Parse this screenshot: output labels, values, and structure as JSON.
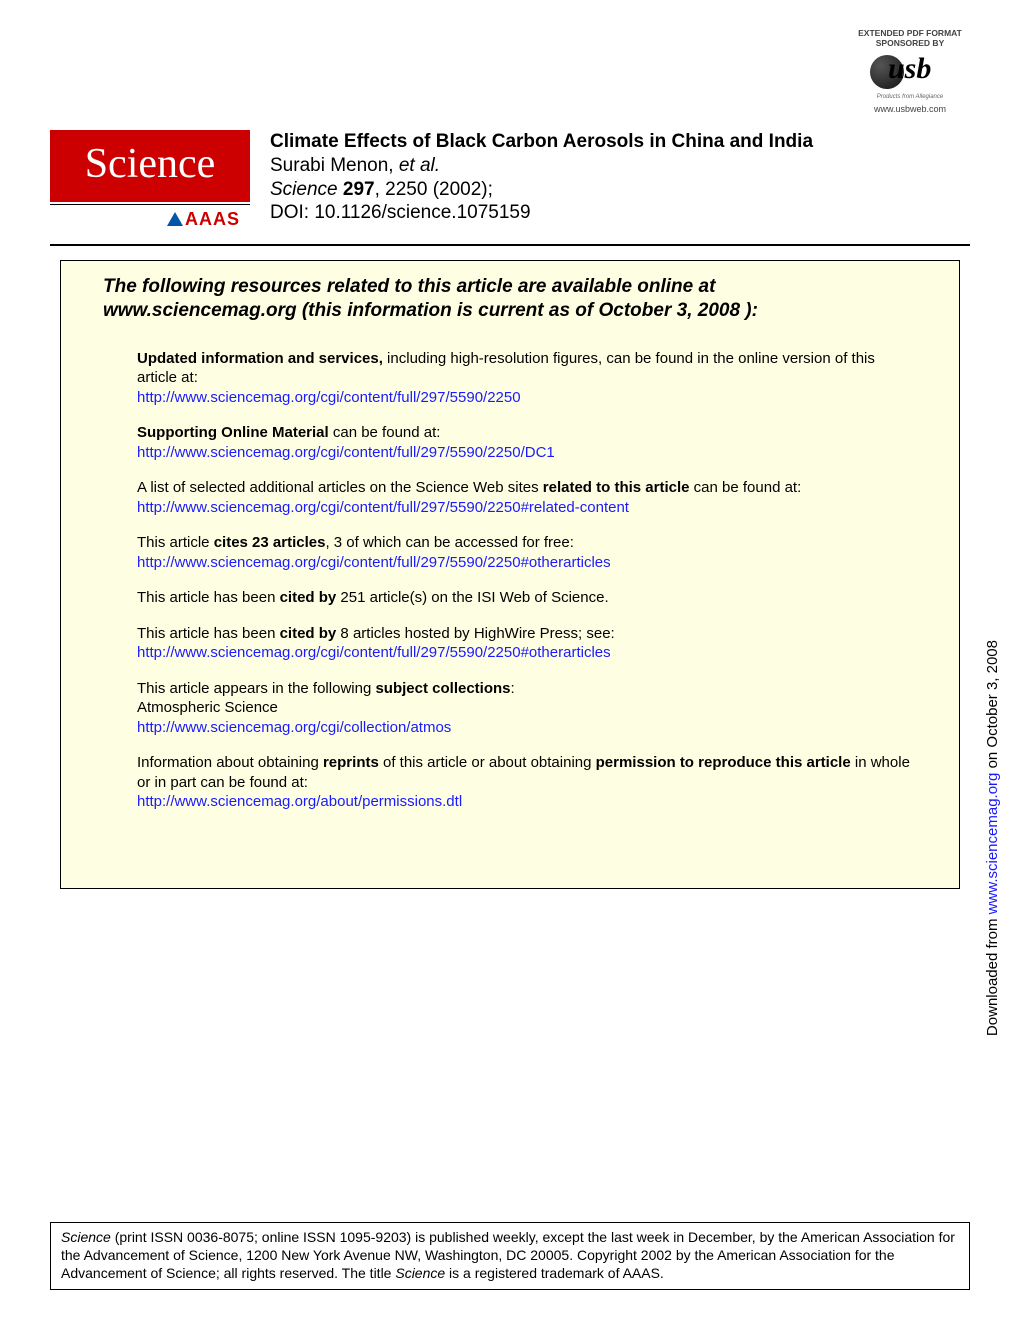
{
  "sponsor": {
    "line1": "EXTENDED PDF FORMAT",
    "line2": "SPONSORED BY",
    "brand_text": "usb",
    "tagline": "Products from Allegiance",
    "url": "www.usbweb.com",
    "text_color": "#444444",
    "orb_color": "#111111"
  },
  "header": {
    "logo_text": "Science",
    "logo_bg": "#cc0000",
    "logo_fg": "#ffffff",
    "aaas_text": "AAAS",
    "aaas_color": "#cc0000",
    "aaas_triangle_color": "#0057a8",
    "title": "Climate Effects of Black Carbon Aerosols in China and India",
    "authors_lead": "Surabi Menon, ",
    "authors_etal": "et al.",
    "journal": "Science",
    "volume": "297",
    "pages_year": ", 2250 (2002);",
    "doi": "DOI: 10.1126/science.1075159"
  },
  "resources": {
    "heading_line1": "The following resources related to this article are available online at",
    "heading_line2": "www.sciencemag.org (this information is current as of October 3, 2008 ):",
    "box_bg": "#feffe2",
    "link_color": "#1a1aff",
    "blocks": {
      "updated": {
        "strong": "Updated information and services,",
        "rest": " including high-resolution figures, can be found in the online version of this article at:",
        "url": "http://www.sciencemag.org/cgi/content/full/297/5590/2250"
      },
      "som": {
        "strong": "Supporting Online Material",
        "rest": " can be found at:",
        "url": "http://www.sciencemag.org/cgi/content/full/297/5590/2250/DC1"
      },
      "related": {
        "pre": "A list of selected additional articles on the Science Web sites ",
        "strong": "related to this article",
        "post": " can be found at:",
        "url": "http://www.sciencemag.org/cgi/content/full/297/5590/2250#related-content"
      },
      "cites": {
        "pre": "This article ",
        "strong": "cites 23 articles",
        "post": ", 3 of which can be accessed for free:",
        "url": "http://www.sciencemag.org/cgi/content/full/297/5590/2250#otherarticles"
      },
      "cited_isi": {
        "pre": "This article has been ",
        "strong": "cited by",
        "post": " 251 article(s) on the ISI Web of Science."
      },
      "cited_hw": {
        "pre": "This article has been ",
        "strong": "cited by",
        "post": " 8 articles hosted by HighWire Press; see:",
        "url": "http://www.sciencemag.org/cgi/content/full/297/5590/2250#otherarticles"
      },
      "subject": {
        "pre": "This article appears in the following ",
        "strong": "subject collections",
        "post": ":",
        "collection": "Atmospheric Science",
        "url": "http://www.sciencemag.org/cgi/collection/atmos"
      },
      "reprints": {
        "pre": "Information about obtaining ",
        "strong1": "reprints",
        "mid": " of this article or about obtaining ",
        "strong2": "permission to reproduce this article",
        "post": "  in whole or in part can be found at:",
        "url": "http://www.sciencemag.org/about/permissions.dtl"
      }
    }
  },
  "sidetext": {
    "pre": "Downloaded from ",
    "url": "www.sciencemag.org",
    "post": " on October 3, 2008"
  },
  "footer": {
    "journal": "Science",
    "part1": " (print ISSN 0036-8075; online ISSN 1095-9203) is published weekly, except the last week in December, by the American Association for the Advancement of Science, 1200 New York Avenue NW, Washington, DC 20005. Copyright 2002 by the American Association for the Advancement of Science; all rights reserved. The title ",
    "journal2": "Science",
    "part2": " is a registered trademark of AAAS."
  }
}
